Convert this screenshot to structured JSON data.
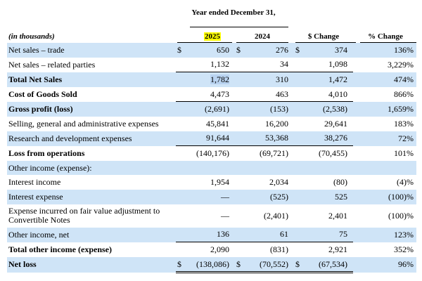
{
  "header": {
    "period": "Year ended December 31,",
    "units": "(in thousands)",
    "col_2025": "2025",
    "col_2024": "2024",
    "col_change": "$ Change",
    "col_pct": "% Change"
  },
  "rows": [
    {
      "label": "Net sales – trade",
      "bold": false,
      "shade": true,
      "cur": "$",
      "v2025": "650",
      "v2024": "276",
      "chg": "374",
      "pct": "136%"
    },
    {
      "label": "Net sales – related parties",
      "bold": false,
      "shade": false,
      "cur": "",
      "v2025": "1,132",
      "v2024": "34",
      "chg": "1,098",
      "pct": "3,229%"
    },
    {
      "label": "Total Net Sales",
      "bold": true,
      "shade": true,
      "cur": "",
      "v2025": "1,782",
      "v2024": "310",
      "chg": "1,472",
      "pct": "474%"
    },
    {
      "label": "Cost of Goods Sold",
      "bold": true,
      "shade": false,
      "cur": "",
      "v2025": "4,473",
      "v2024": "463",
      "chg": "4,010",
      "pct": "866%"
    },
    {
      "label": "Gross profit (loss)",
      "bold": true,
      "shade": true,
      "cur": "",
      "v2025": "(2,691)",
      "v2024": "(153)",
      "chg": "(2,538)",
      "pct": "1,659%"
    },
    {
      "label": "Selling, general and administrative expenses",
      "bold": false,
      "shade": false,
      "cur": "",
      "v2025": "45,841",
      "v2024": "16,200",
      "chg": "29,641",
      "pct": "183%"
    },
    {
      "label": "Research and development expenses",
      "bold": false,
      "shade": true,
      "cur": "",
      "v2025": "91,644",
      "v2024": "53,368",
      "chg": "38,276",
      "pct": "72%"
    },
    {
      "label": "Loss from operations",
      "bold": true,
      "shade": false,
      "cur": "",
      "v2025": "(140,176)",
      "v2024": "(69,721)",
      "chg": "(70,455)",
      "pct": "101%"
    },
    {
      "label": "Other income (expense):",
      "bold": false,
      "shade": true,
      "cur": "",
      "v2025": "",
      "v2024": "",
      "chg": "",
      "pct": ""
    },
    {
      "label": "Interest income",
      "bold": false,
      "shade": false,
      "cur": "",
      "v2025": "1,954",
      "v2024": "2,034",
      "chg": "(80)",
      "pct": "(4)%"
    },
    {
      "label": "Interest expense",
      "bold": false,
      "shade": true,
      "cur": "",
      "v2025": "—",
      "v2024": "(525)",
      "chg": "525",
      "pct": "(100)%"
    },
    {
      "label": "Expense incurred on fair value adjustment to Convertible Notes",
      "bold": false,
      "shade": false,
      "cur": "",
      "v2025": "—",
      "v2024": "(2,401)",
      "chg": "2,401",
      "pct": "(100)%"
    },
    {
      "label": "Other income, net",
      "bold": false,
      "shade": true,
      "cur": "",
      "v2025": "136",
      "v2024": "61",
      "chg": "75",
      "pct": "123%"
    },
    {
      "label": "Total other income (expense)",
      "bold": true,
      "shade": false,
      "cur": "",
      "v2025": "2,090",
      "v2024": "(831)",
      "chg": "2,921",
      "pct": "352%"
    },
    {
      "label": "Net loss",
      "bold": true,
      "shade": true,
      "cur": "$",
      "v2025": "(138,086)",
      "v2024": "(70,552)",
      "chg": "(67,534)",
      "pct": "96%"
    }
  ],
  "colors": {
    "row_shade": "#cfe4f7",
    "year_highlight": "#ffff00",
    "selection": "#b9d3f0"
  }
}
